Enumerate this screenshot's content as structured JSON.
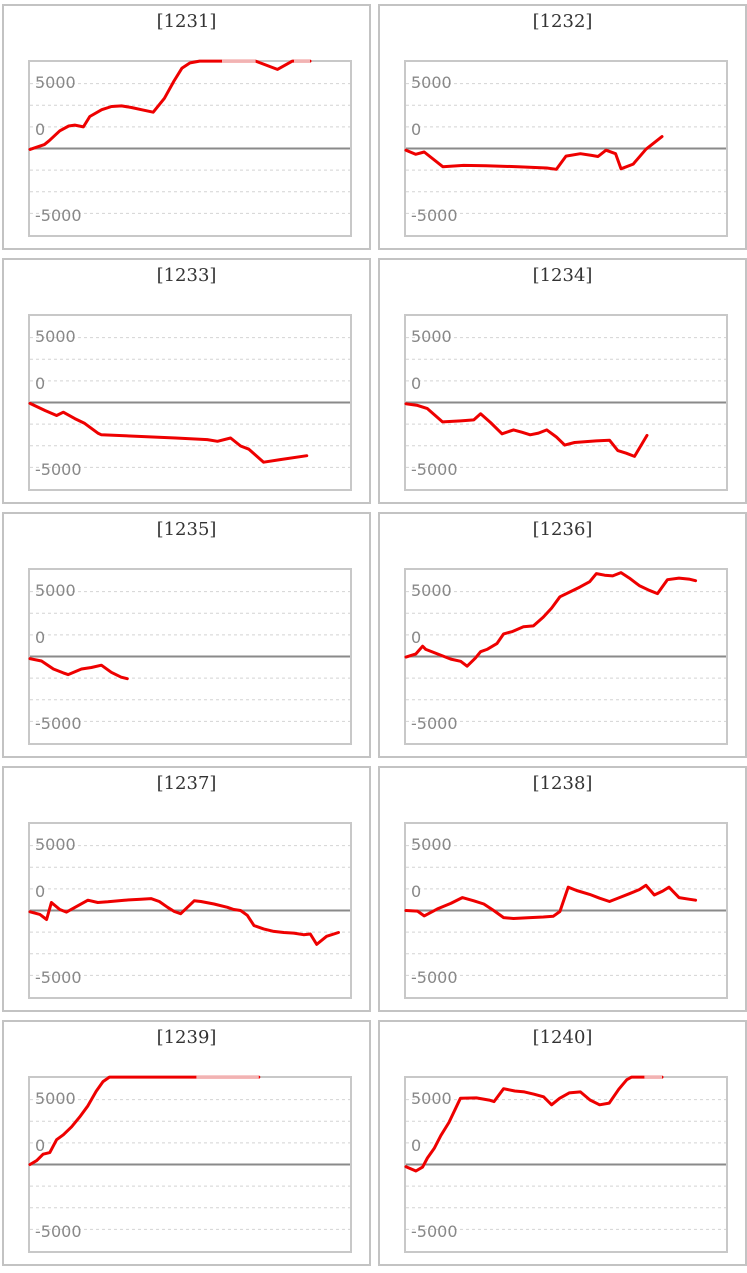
{
  "page": {
    "background": "#ffffff"
  },
  "y_axis": {
    "labels": [
      "5000",
      "0",
      "-5000"
    ],
    "range": [
      -10000,
      10000
    ],
    "gridline_step": 2500
  },
  "colors": {
    "series": "#ee0000",
    "series_faded": "#f1b3b3",
    "zero_line": "#8a8a8a",
    "gridline": "#d4d4d4",
    "plot_border": "#c8c8c8",
    "tile_border": "#c3c3c3",
    "title_text": "#333333",
    "axis_label": "#888888"
  },
  "chart_data": [
    {
      "type": "line",
      "title": "[1231]",
      "ylim": [
        -10000,
        10000
      ],
      "grid": "dashed-2500",
      "legend": "none",
      "points": [
        [
          0,
          -100
        ],
        [
          0.045,
          450
        ],
        [
          0.06,
          900
        ],
        [
          0.093,
          2050
        ],
        [
          0.121,
          2600
        ],
        [
          0.14,
          2700
        ],
        [
          0.167,
          2500
        ],
        [
          0.187,
          3700
        ],
        [
          0.224,
          4480
        ],
        [
          0.255,
          4850
        ],
        [
          0.286,
          4920
        ],
        [
          0.317,
          4740
        ],
        [
          0.348,
          4480
        ],
        [
          0.385,
          4200
        ],
        [
          0.42,
          5800
        ],
        [
          0.45,
          7800
        ],
        [
          0.475,
          9300
        ],
        [
          0.5,
          9900
        ],
        [
          0.53,
          10100
        ],
        [
          0.705,
          10100
        ],
        [
          0.773,
          9150
        ],
        [
          0.82,
          10100
        ],
        [
          0.875,
          10100
        ]
      ],
      "faded_ranges": [
        [
          0.6,
          0.705
        ],
        [
          0.825,
          0.875
        ]
      ]
    },
    {
      "type": "line",
      "title": "[1232]",
      "ylim": [
        -10000,
        10000
      ],
      "grid": "dashed-2500",
      "legend": "none",
      "points": [
        [
          0,
          -200
        ],
        [
          0.03,
          -670
        ],
        [
          0.057,
          -400
        ],
        [
          0.115,
          -2100
        ],
        [
          0.18,
          -1950
        ],
        [
          0.25,
          -2000
        ],
        [
          0.35,
          -2100
        ],
        [
          0.44,
          -2250
        ],
        [
          0.47,
          -2400
        ],
        [
          0.5,
          -880
        ],
        [
          0.545,
          -600
        ],
        [
          0.58,
          -800
        ],
        [
          0.6,
          -930
        ],
        [
          0.625,
          -200
        ],
        [
          0.655,
          -600
        ],
        [
          0.672,
          -2350
        ],
        [
          0.71,
          -1800
        ],
        [
          0.75,
          -80
        ],
        [
          0.8,
          1380
        ]
      ],
      "faded_ranges": []
    },
    {
      "type": "line",
      "title": "[1233]",
      "ylim": [
        -10000,
        10000
      ],
      "grid": "dashed-2500",
      "legend": "none",
      "points": [
        [
          0,
          -100
        ],
        [
          0.047,
          -930
        ],
        [
          0.083,
          -1500
        ],
        [
          0.104,
          -1120
        ],
        [
          0.14,
          -1860
        ],
        [
          0.171,
          -2420
        ],
        [
          0.212,
          -3540
        ],
        [
          0.223,
          -3730
        ],
        [
          0.33,
          -3900
        ],
        [
          0.455,
          -4100
        ],
        [
          0.554,
          -4290
        ],
        [
          0.586,
          -4480
        ],
        [
          0.627,
          -4100
        ],
        [
          0.658,
          -5030
        ],
        [
          0.684,
          -5400
        ],
        [
          0.73,
          -6900
        ],
        [
          0.782,
          -6600
        ],
        [
          0.865,
          -6150
        ]
      ],
      "faded_ranges": []
    },
    {
      "type": "line",
      "title": "[1234]",
      "ylim": [
        -10000,
        10000
      ],
      "grid": "dashed-2500",
      "legend": "none",
      "points": [
        [
          0,
          -150
        ],
        [
          0.036,
          -340
        ],
        [
          0.067,
          -710
        ],
        [
          0.114,
          -2240
        ],
        [
          0.171,
          -2130
        ],
        [
          0.212,
          -2010
        ],
        [
          0.233,
          -1310
        ],
        [
          0.264,
          -2310
        ],
        [
          0.3,
          -3620
        ],
        [
          0.336,
          -3170
        ],
        [
          0.362,
          -3430
        ],
        [
          0.388,
          -3730
        ],
        [
          0.414,
          -3540
        ],
        [
          0.44,
          -3170
        ],
        [
          0.47,
          -3990
        ],
        [
          0.496,
          -4920
        ],
        [
          0.527,
          -4620
        ],
        [
          0.594,
          -4440
        ],
        [
          0.636,
          -4360
        ],
        [
          0.662,
          -5560
        ],
        [
          0.688,
          -5860
        ],
        [
          0.714,
          -6230
        ],
        [
          0.753,
          -3800
        ]
      ],
      "faded_ranges": []
    },
    {
      "type": "line",
      "title": "[1235]",
      "ylim": [
        -10000,
        10000
      ],
      "grid": "dashed-2500",
      "legend": "none",
      "points": [
        [
          0,
          -260
        ],
        [
          0.036,
          -520
        ],
        [
          0.073,
          -1450
        ],
        [
          0.104,
          -1900
        ],
        [
          0.119,
          -2090
        ],
        [
          0.161,
          -1450
        ],
        [
          0.192,
          -1270
        ],
        [
          0.223,
          -1010
        ],
        [
          0.254,
          -1830
        ],
        [
          0.285,
          -2390
        ],
        [
          0.304,
          -2570
        ]
      ],
      "faded_ranges": []
    },
    {
      "type": "line",
      "title": "[1236]",
      "ylim": [
        -10000,
        10000
      ],
      "grid": "dashed-2500",
      "legend": "none",
      "points": [
        [
          0,
          -70
        ],
        [
          0.031,
          300
        ],
        [
          0.052,
          1190
        ],
        [
          0.062,
          820
        ],
        [
          0.098,
          300
        ],
        [
          0.14,
          -300
        ],
        [
          0.171,
          -560
        ],
        [
          0.191,
          -1120
        ],
        [
          0.217,
          -190
        ],
        [
          0.233,
          560
        ],
        [
          0.253,
          820
        ],
        [
          0.284,
          1490
        ],
        [
          0.305,
          2610
        ],
        [
          0.331,
          2870
        ],
        [
          0.367,
          3430
        ],
        [
          0.398,
          3540
        ],
        [
          0.429,
          4550
        ],
        [
          0.455,
          5600
        ],
        [
          0.481,
          6900
        ],
        [
          0.512,
          7460
        ],
        [
          0.543,
          8020
        ],
        [
          0.574,
          8650
        ],
        [
          0.595,
          9580
        ],
        [
          0.621,
          9400
        ],
        [
          0.646,
          9320
        ],
        [
          0.672,
          9700
        ],
        [
          0.698,
          9060
        ],
        [
          0.729,
          8200
        ],
        [
          0.76,
          7650
        ],
        [
          0.786,
          7270
        ],
        [
          0.817,
          8880
        ],
        [
          0.853,
          9060
        ],
        [
          0.884,
          8950
        ],
        [
          0.905,
          8760
        ]
      ],
      "faded_ranges": []
    },
    {
      "type": "line",
      "title": "[1237]",
      "ylim": [
        -10000,
        10000
      ],
      "grid": "dashed-2500",
      "legend": "none",
      "points": [
        [
          0,
          -150
        ],
        [
          0.031,
          -450
        ],
        [
          0.052,
          -1040
        ],
        [
          0.067,
          930
        ],
        [
          0.093,
          110
        ],
        [
          0.114,
          -190
        ],
        [
          0.15,
          560
        ],
        [
          0.181,
          1190
        ],
        [
          0.212,
          930
        ],
        [
          0.243,
          1010
        ],
        [
          0.295,
          1190
        ],
        [
          0.347,
          1310
        ],
        [
          0.378,
          1380
        ],
        [
          0.404,
          1040
        ],
        [
          0.43,
          370
        ],
        [
          0.451,
          -110
        ],
        [
          0.471,
          -370
        ],
        [
          0.492,
          370
        ],
        [
          0.513,
          1120
        ],
        [
          0.534,
          1040
        ],
        [
          0.575,
          750
        ],
        [
          0.617,
          370
        ],
        [
          0.637,
          110
        ],
        [
          0.658,
          0
        ],
        [
          0.679,
          -560
        ],
        [
          0.7,
          -1750
        ],
        [
          0.73,
          -2130
        ],
        [
          0.762,
          -2420
        ],
        [
          0.793,
          -2540
        ],
        [
          0.824,
          -2610
        ],
        [
          0.855,
          -2800
        ],
        [
          0.876,
          -2720
        ],
        [
          0.896,
          -3920
        ],
        [
          0.927,
          -2980
        ],
        [
          0.964,
          -2540
        ]
      ],
      "faded_ranges": []
    },
    {
      "type": "line",
      "title": "[1238]",
      "ylim": [
        -10000,
        10000
      ],
      "grid": "dashed-2500",
      "legend": "none",
      "points": [
        [
          0,
          0
        ],
        [
          0.036,
          -70
        ],
        [
          0.057,
          -630
        ],
        [
          0.098,
          190
        ],
        [
          0.14,
          820
        ],
        [
          0.176,
          1490
        ],
        [
          0.212,
          1120
        ],
        [
          0.243,
          750
        ],
        [
          0.274,
          0
        ],
        [
          0.305,
          -820
        ],
        [
          0.336,
          -930
        ],
        [
          0.388,
          -820
        ],
        [
          0.429,
          -750
        ],
        [
          0.46,
          -670
        ],
        [
          0.481,
          -110
        ],
        [
          0.507,
          2690
        ],
        [
          0.533,
          2310
        ],
        [
          0.574,
          1860
        ],
        [
          0.605,
          1420
        ],
        [
          0.636,
          1040
        ],
        [
          0.667,
          1490
        ],
        [
          0.698,
          1940
        ],
        [
          0.729,
          2420
        ],
        [
          0.75,
          2910
        ],
        [
          0.776,
          1790
        ],
        [
          0.802,
          2240
        ],
        [
          0.822,
          2690
        ],
        [
          0.853,
          1490
        ],
        [
          0.884,
          1310
        ],
        [
          0.905,
          1190
        ]
      ],
      "faded_ranges": []
    },
    {
      "type": "line",
      "title": "[1239]",
      "ylim": [
        -10000,
        10000
      ],
      "grid": "dashed-2500",
      "legend": "none",
      "points": [
        [
          0,
          0
        ],
        [
          0.021,
          450
        ],
        [
          0.041,
          1190
        ],
        [
          0.062,
          1380
        ],
        [
          0.083,
          2870
        ],
        [
          0.104,
          3430
        ],
        [
          0.13,
          4360
        ],
        [
          0.155,
          5480
        ],
        [
          0.181,
          6790
        ],
        [
          0.207,
          8470
        ],
        [
          0.228,
          9580
        ],
        [
          0.248,
          10100
        ],
        [
          0.715,
          10100
        ]
      ],
      "faded_ranges": [
        [
          0.52,
          0.715
        ]
      ]
    },
    {
      "type": "line",
      "title": "[1240]",
      "ylim": [
        -10000,
        10000
      ],
      "grid": "dashed-2500",
      "legend": "none",
      "points": [
        [
          0,
          -260
        ],
        [
          0.031,
          -750
        ],
        [
          0.052,
          -300
        ],
        [
          0.067,
          750
        ],
        [
          0.088,
          1860
        ],
        [
          0.109,
          3360
        ],
        [
          0.134,
          4850
        ],
        [
          0.17,
          7650
        ],
        [
          0.22,
          7700
        ],
        [
          0.26,
          7450
        ],
        [
          0.275,
          7270
        ],
        [
          0.305,
          8760
        ],
        [
          0.34,
          8500
        ],
        [
          0.37,
          8390
        ],
        [
          0.4,
          8130
        ],
        [
          0.43,
          7830
        ],
        [
          0.455,
          6900
        ],
        [
          0.48,
          7650
        ],
        [
          0.51,
          8280
        ],
        [
          0.545,
          8390
        ],
        [
          0.575,
          7460
        ],
        [
          0.605,
          6900
        ],
        [
          0.635,
          7100
        ],
        [
          0.665,
          8700
        ],
        [
          0.69,
          9800
        ],
        [
          0.705,
          10100
        ],
        [
          0.8,
          10100
        ]
      ],
      "faded_ranges": [
        [
          0.745,
          0.8
        ]
      ]
    }
  ]
}
